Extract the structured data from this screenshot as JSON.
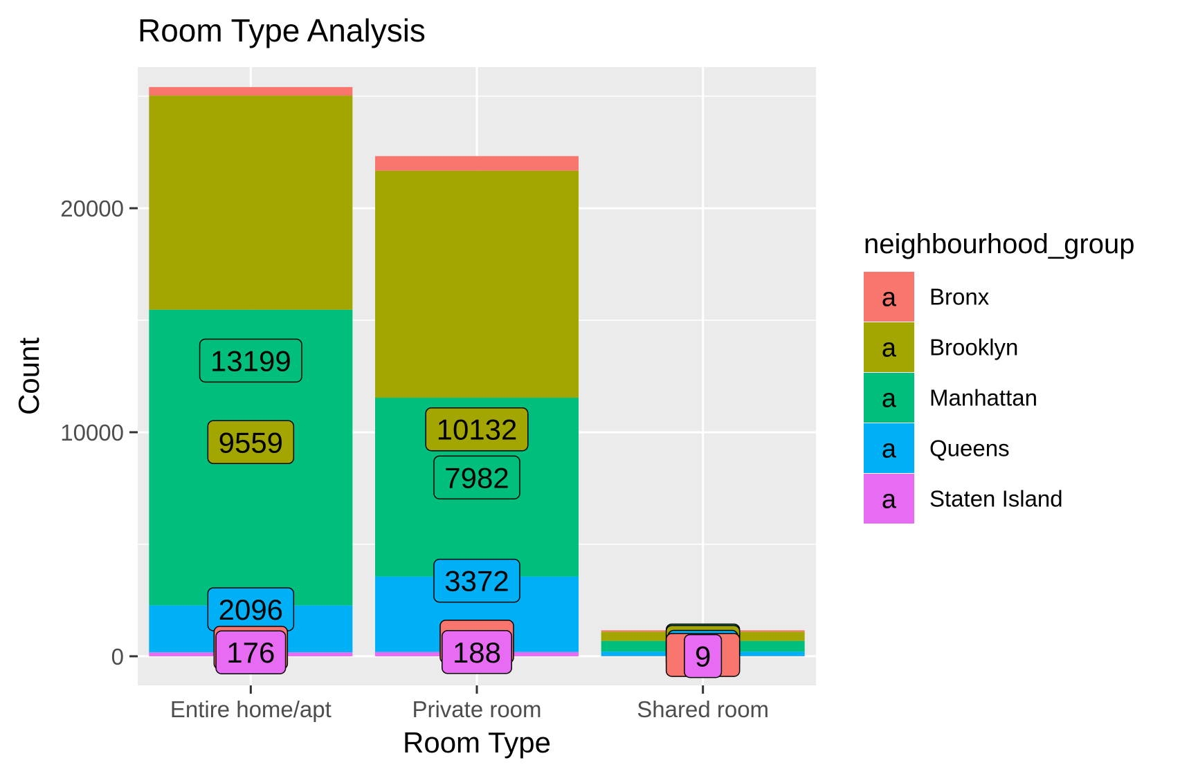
{
  "chart_data": {
    "type": "bar",
    "stacked": true,
    "title": "Room Type Analysis",
    "xlabel": "Room Type",
    "ylabel": "Count",
    "categories": [
      "Entire home/apt",
      "Private room",
      "Shared room"
    ],
    "ylim": [
      -1300,
      26300
    ],
    "yticks": [
      0,
      10000,
      20000
    ],
    "grid": true,
    "legend": {
      "title": "neighbourhood_group",
      "position": "right",
      "key_glyph": "a"
    },
    "series": [
      {
        "name": "Bronx",
        "color": "#F8766D",
        "values": [
          379,
          652,
          60
        ]
      },
      {
        "name": "Brooklyn",
        "color": "#A3A500",
        "values": [
          9559,
          10132,
          413
        ]
      },
      {
        "name": "Manhattan",
        "color": "#00BF7D",
        "values": [
          13199,
          7982,
          480
        ]
      },
      {
        "name": "Queens",
        "color": "#00B0F6",
        "values": [
          2096,
          3372,
          198
        ]
      },
      {
        "name": "Staten Island",
        "color": "#E76BF3",
        "values": [
          176,
          188,
          9
        ]
      }
    ],
    "labels": [
      {
        "series": "Manhattan",
        "category": "Entire home/apt",
        "text": "13199",
        "y": 13199
      },
      {
        "series": "Brooklyn",
        "category": "Entire home/apt",
        "text": "9559",
        "y": 9559
      },
      {
        "series": "Queens",
        "category": "Entire home/apt",
        "text": "2096",
        "y": 2096
      },
      {
        "series": "Bronx",
        "category": "Entire home/apt",
        "text": "",
        "y": 379
      },
      {
        "series": "Staten Island",
        "category": "Entire home/apt",
        "text": "176",
        "y": 176
      },
      {
        "series": "Brooklyn",
        "category": "Private room",
        "text": "10132",
        "y": 10132
      },
      {
        "series": "Manhattan",
        "category": "Private room",
        "text": "7982",
        "y": 7982
      },
      {
        "series": "Queens",
        "category": "Private room",
        "text": "3372",
        "y": 3372
      },
      {
        "series": "Bronx",
        "category": "Private room",
        "text": "",
        "y": 652
      },
      {
        "series": "Staten Island",
        "category": "Private room",
        "text": "188",
        "y": 188
      },
      {
        "series": "Manhattan",
        "category": "Shared room",
        "text": "",
        "y": 480
      },
      {
        "series": "Brooklyn",
        "category": "Shared room",
        "text": "",
        "y": 413
      },
      {
        "series": "Queens",
        "category": "Shared room",
        "text": "198",
        "y": 198
      },
      {
        "series": "Bronx",
        "category": "Shared room",
        "text": "",
        "y": 60
      },
      {
        "series": "Staten Island",
        "category": "Shared room",
        "text": "9",
        "y": 9
      }
    ]
  }
}
